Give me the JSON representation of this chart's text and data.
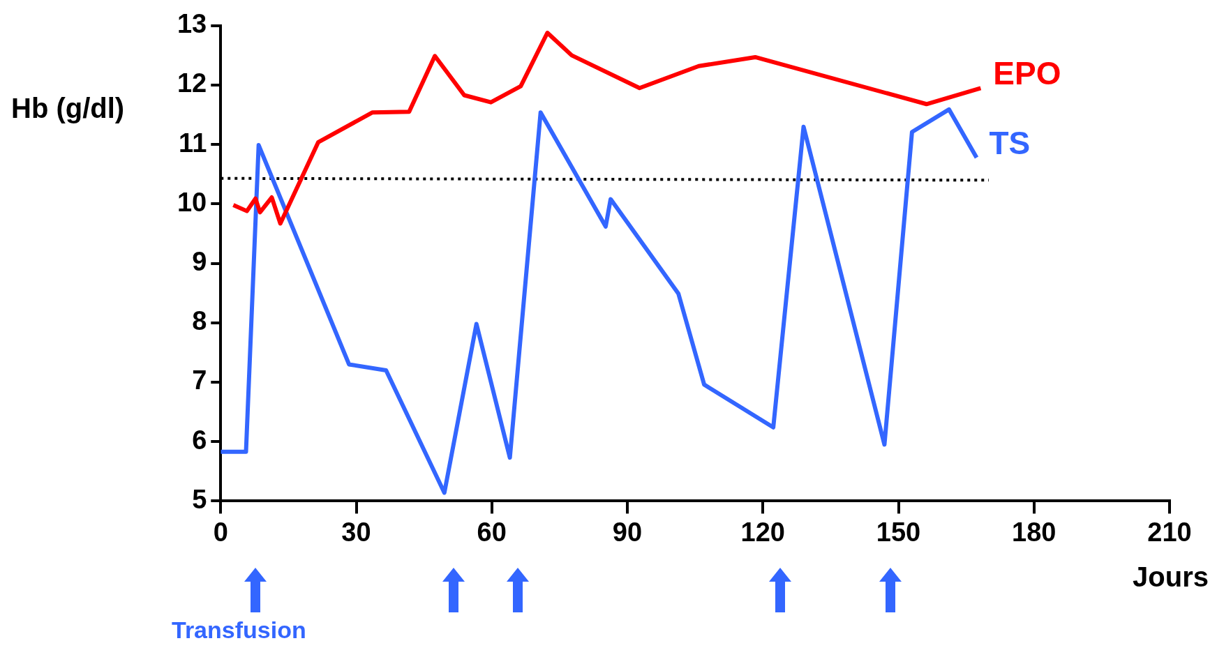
{
  "chart_data": {
    "type": "line",
    "xlabel": "Jours",
    "ylabel": "Hb (g/dl)",
    "xlim": [
      0,
      210
    ],
    "xticks": [
      0,
      30,
      60,
      90,
      120,
      150,
      180,
      210
    ],
    "ylim": [
      5,
      13
    ],
    "yticks": [
      5,
      6,
      7,
      8,
      9,
      10,
      11,
      12,
      13
    ],
    "grid": false,
    "legend": false,
    "marker": "none",
    "annotations": [
      "Transfusion"
    ],
    "series": [
      {
        "name": "EPO",
        "color": "#ff0000",
        "x": [
          2.8,
          5.8,
          7.7,
          8.7,
          11.3,
          13.2,
          21.6,
          33.6,
          41.7,
          47.4,
          53.9,
          59.8,
          66.4,
          72.3,
          77.7,
          92.7,
          105.8,
          118.3,
          156.2,
          168.2
        ],
        "values": [
          9.98,
          9.88,
          10.09,
          9.86,
          10.11,
          9.67,
          11.04,
          11.54,
          11.55,
          12.49,
          11.83,
          11.71,
          11.98,
          12.88,
          12.5,
          11.95,
          12.32,
          12.47,
          11.68,
          11.95
        ]
      },
      {
        "name": "TS",
        "color": "#3366ff",
        "x": [
          0,
          5.6,
          8.4,
          28.4,
          36.6,
          49.5,
          56.6,
          64,
          70.8,
          85.2,
          86.3,
          101.3,
          107,
          122.3,
          129,
          146.9,
          153,
          161.2,
          167.3
        ],
        "values": [
          5.83,
          5.83,
          10.99,
          7.3,
          7.2,
          5.14,
          7.98,
          5.73,
          11.54,
          9.62,
          10.08,
          8.49,
          6.96,
          6.24,
          11.3,
          5.95,
          11.21,
          11.59,
          10.78
        ]
      },
      {
        "type": "line",
        "color": "#000000",
        "line_style": "dotted",
        "x": [
          0,
          170
        ],
        "values": [
          10.43,
          10.4
        ]
      }
    ]
  }
}
